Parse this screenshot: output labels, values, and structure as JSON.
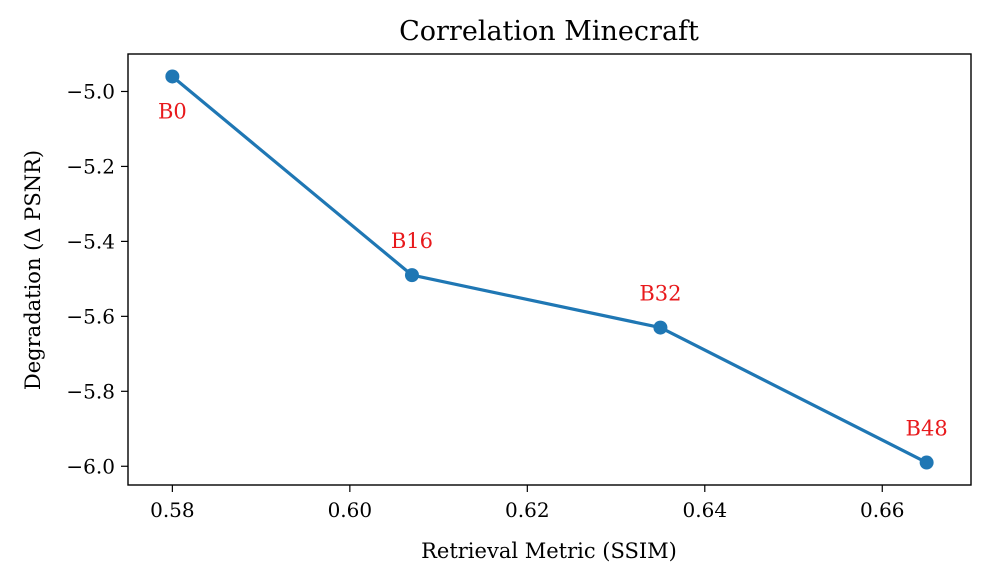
{
  "chart_data": {
    "type": "line",
    "title": "Correlation Minecraft",
    "xlabel": "Retrieval Metric (SSIM)",
    "ylabel": "Degradation (Δ PSNR)",
    "xlim": [
      0.575,
      0.67
    ],
    "ylim": [
      -6.05,
      -4.9
    ],
    "xticks": [
      0.58,
      0.6,
      0.62,
      0.64,
      0.66
    ],
    "xtick_labels": [
      "0.58",
      "0.60",
      "0.62",
      "0.64",
      "0.66"
    ],
    "yticks": [
      -5.0,
      -5.2,
      -5.4,
      -5.6,
      -5.8,
      -6.0
    ],
    "ytick_labels": [
      "−5.0",
      "−5.2",
      "−5.4",
      "−5.6",
      "−5.8",
      "−6.0"
    ],
    "grid": false,
    "series": [
      {
        "name": "Minecraft",
        "color": "#1f77b4",
        "x": [
          0.58,
          0.607,
          0.635,
          0.665
        ],
        "y": [
          -4.96,
          -5.49,
          -5.63,
          -5.99
        ],
        "labels": [
          "B0",
          "B16",
          "B32",
          "B48"
        ],
        "label_color": "#e8191c",
        "label_position": [
          "below",
          "above",
          "above",
          "above"
        ]
      }
    ]
  }
}
